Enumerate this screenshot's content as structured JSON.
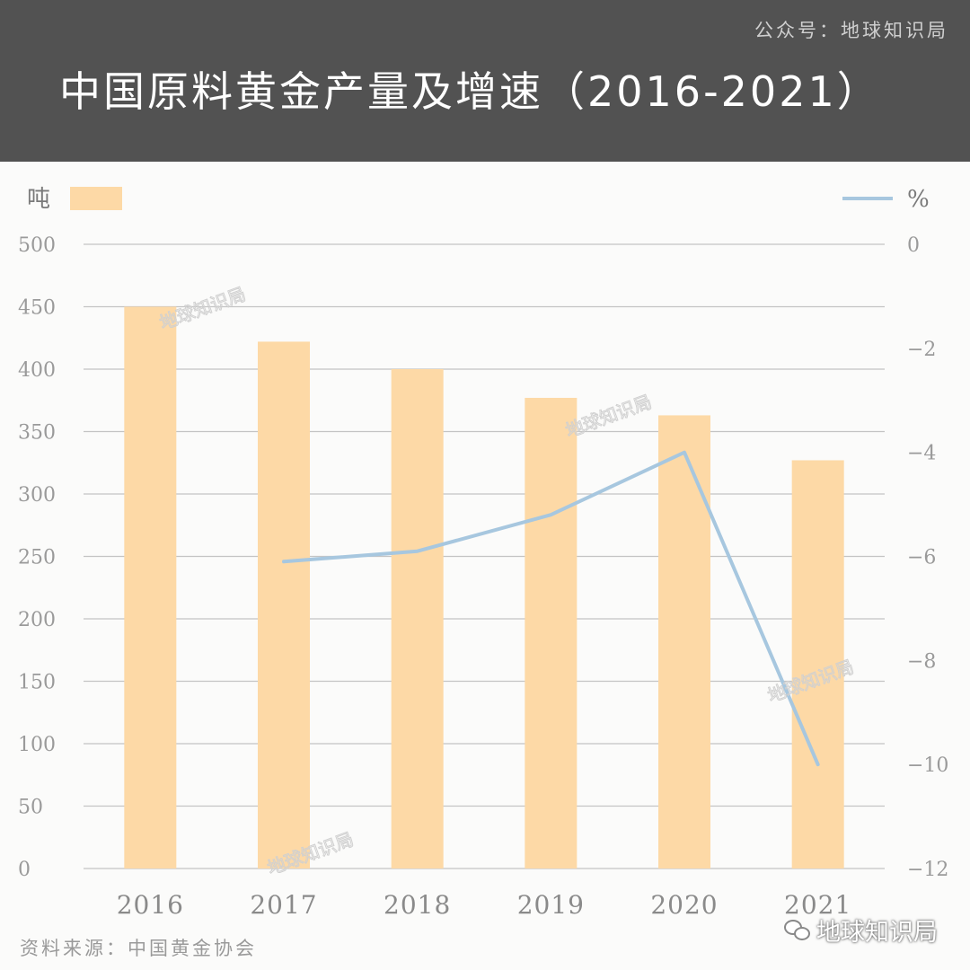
{
  "header": {
    "source_account": "公众号：地球知识局",
    "title": "中国原料黄金产量及增速（2016-2021）"
  },
  "colors": {
    "bar": "#fdd9a6",
    "line": "#a7c7df",
    "grid": "#c4c4c4",
    "banner": "#525252"
  },
  "footer": {
    "source": "资料来源：中国黄金协会",
    "watermark": "地球知识局"
  },
  "watermark_text": "地球知识局",
  "chart_data": {
    "type": "bar",
    "categories": [
      "2016",
      "2017",
      "2018",
      "2019",
      "2020",
      "2021"
    ],
    "series": [
      {
        "type": "bar",
        "axis": "left",
        "values": [
          450,
          422,
          400,
          377,
          363,
          327
        ]
      },
      {
        "type": "line",
        "axis": "right",
        "values": [
          null,
          -6.1,
          -5.9,
          -5.2,
          -4.0,
          -10.0
        ]
      }
    ],
    "left_axis": {
      "unit": "吨",
      "ylim": [
        0,
        500
      ],
      "ticks": [
        "0",
        "50",
        "100",
        "150",
        "200",
        "250",
        "300",
        "350",
        "400",
        "450",
        "500"
      ]
    },
    "right_axis": {
      "unit": "%",
      "ylim": [
        -12,
        0
      ],
      "ticks": [
        "0",
        "−2",
        "−4",
        "−6",
        "−8",
        "−10",
        "−12"
      ]
    },
    "grid": true,
    "legend": "top"
  }
}
